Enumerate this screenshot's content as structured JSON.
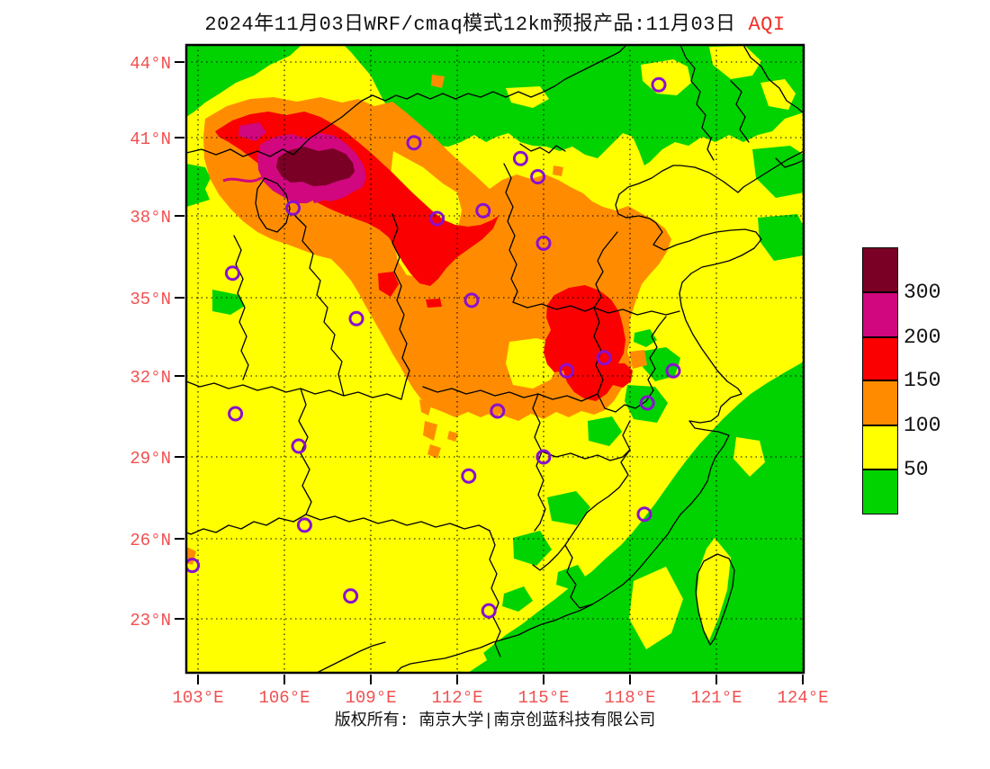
{
  "title": {
    "text": "2024年11月03日WRF/cmaq模式12km预报产品:11月03日",
    "variable_label": "AQI"
  },
  "footer": {
    "copyright": "版权所有: 南京大学|南京创蓝科技有限公司"
  },
  "colors": {
    "green": "#00D300",
    "yellow": "#FFFF00",
    "orange": "#FF8C00",
    "red": "#FA0000",
    "magenta": "#D0077E",
    "maroon": "#7A0025",
    "marker": "#8A0FD0",
    "axis": "#F15050",
    "aqi": "#F03028"
  },
  "legend": {
    "colors_top_to_bottom": [
      "#7A0025",
      "#D0077E",
      "#FA0000",
      "#FF8C00",
      "#FFFF00",
      "#00D300"
    ],
    "boundary_labels": [
      "300",
      "200",
      "150",
      "100",
      "50"
    ]
  },
  "chart_data": {
    "type": "heatmap",
    "title": "2024年11月03日WRF/cmaq模式12km预报产品:11月03日 AQI",
    "variable": "AQI",
    "model": "WRF/cmaq 12km",
    "x_axis": {
      "values": [
        103,
        106,
        109,
        112,
        115,
        118,
        121,
        124
      ],
      "labels": [
        "103°E",
        "106°E",
        "109°E",
        "112°E",
        "115°E",
        "118°E",
        "121°E",
        "124°E"
      ],
      "range_deg": [
        102.6,
        124.0
      ]
    },
    "y_axis": {
      "values": [
        44,
        41,
        38,
        35,
        32,
        29,
        26,
        23
      ],
      "labels": [
        "44°N",
        "41°N",
        "38°N",
        "35°N",
        "32°N",
        "29°N",
        "26°N",
        "23°N"
      ],
      "range_deg": [
        21.1,
        44.6
      ]
    },
    "levels": [
      50,
      100,
      150,
      200,
      300
    ],
    "level_colors": [
      "#00D300",
      "#FFFF00",
      "#FF8C00",
      "#FA0000",
      "#D0077E",
      "#7A0025"
    ],
    "legend_position": "right",
    "grid": "dashed 3-degree graticule",
    "hotspots": [
      {
        "area": "NW band ~104-109E, 38.5-41.5N (Gansu/Ningxia/Inner Mongolia)",
        "aqi": ">300 core, 200-300 ring, 150-200 band"
      },
      {
        "area": "Central-east blob ~115-117E, 32.5-35.5N (Henan/Shandong/Anhui)",
        "aqi": "150-200"
      },
      {
        "area": "Central plains ~108-119E, 31-38N",
        "aqi": "100-150"
      },
      {
        "area": "North/Northeast and Southeast coast + sea",
        "aqi": "<50"
      },
      {
        "area": "Most remaining land",
        "aqi": "50-100"
      }
    ],
    "stations": [
      {
        "lon": 110.5,
        "lat": 40.8
      },
      {
        "lon": 119.0,
        "lat": 43.1
      },
      {
        "lon": 114.2,
        "lat": 40.2
      },
      {
        "lon": 114.8,
        "lat": 39.5
      },
      {
        "lon": 115.0,
        "lat": 37.0
      },
      {
        "lon": 106.3,
        "lat": 38.3
      },
      {
        "lon": 111.3,
        "lat": 37.9
      },
      {
        "lon": 112.9,
        "lat": 38.2
      },
      {
        "lon": 104.2,
        "lat": 35.9
      },
      {
        "lon": 108.5,
        "lat": 34.2
      },
      {
        "lon": 112.5,
        "lat": 34.9
      },
      {
        "lon": 117.1,
        "lat": 32.7
      },
      {
        "lon": 115.8,
        "lat": 32.2
      },
      {
        "lon": 119.5,
        "lat": 32.2
      },
      {
        "lon": 118.6,
        "lat": 31.0
      },
      {
        "lon": 104.3,
        "lat": 30.6
      },
      {
        "lon": 106.5,
        "lat": 29.4
      },
      {
        "lon": 113.4,
        "lat": 30.7
      },
      {
        "lon": 112.4,
        "lat": 28.3
      },
      {
        "lon": 106.7,
        "lat": 26.5
      },
      {
        "lon": 102.8,
        "lat": 25.0
      },
      {
        "lon": 108.3,
        "lat": 22.8
      },
      {
        "lon": 113.1,
        "lat": 23.3
      },
      {
        "lon": 115.0,
        "lat": 29.0
      },
      {
        "lon": 118.5,
        "lat": 26.9
      }
    ]
  }
}
